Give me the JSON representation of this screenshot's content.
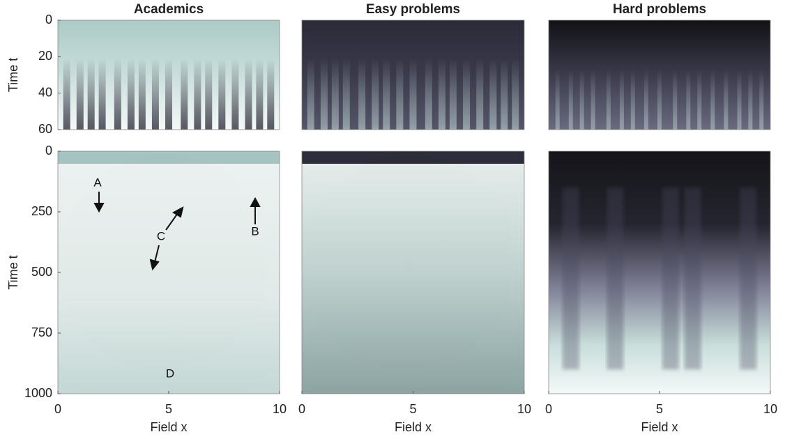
{
  "chart_data": [
    {
      "type": "heatmap",
      "title": "Academics",
      "ylabel": "Time t",
      "xlim": [
        0,
        10
      ],
      "ylim": [
        0,
        60
      ],
      "yticks": [
        0,
        20,
        40,
        60
      ]
    },
    {
      "type": "heatmap",
      "title": "Easy problems",
      "xlim": [
        0,
        10
      ],
      "ylim": [
        0,
        60
      ]
    },
    {
      "type": "heatmap",
      "title": "Hard problems",
      "xlim": [
        0,
        10
      ],
      "ylim": [
        0,
        60
      ]
    },
    {
      "type": "heatmap",
      "xlabel": "Field x",
      "ylabel": "Time t",
      "xlim": [
        0,
        10
      ],
      "ylim": [
        0,
        1000
      ],
      "xticks": [
        0,
        5,
        10
      ],
      "yticks": [
        0,
        250,
        500,
        750,
        1000
      ],
      "annotations": [
        "A",
        "B",
        "C",
        "D"
      ]
    },
    {
      "type": "heatmap",
      "xlabel": "Field x",
      "xlim": [
        0,
        10
      ],
      "ylim": [
        0,
        1000
      ],
      "xticks": [
        0,
        5,
        10
      ]
    },
    {
      "type": "heatmap",
      "xlabel": "Field x",
      "xlim": [
        0,
        10
      ],
      "ylim": [
        0,
        1000
      ],
      "xticks": [
        0,
        5,
        10
      ]
    }
  ]
}
